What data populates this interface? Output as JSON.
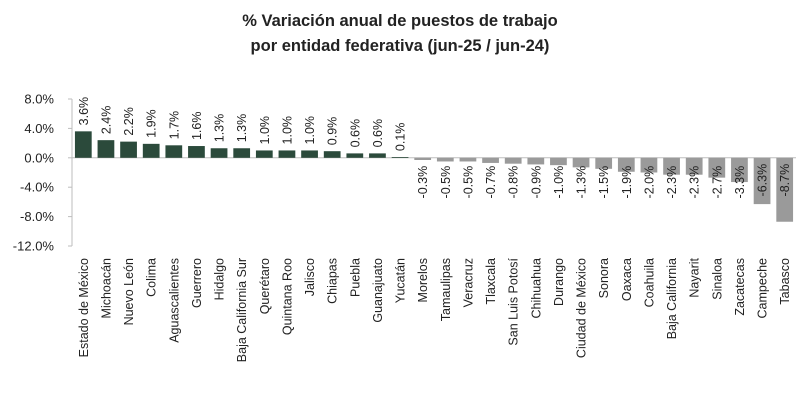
{
  "chart_data": {
    "type": "bar",
    "title": [
      "% Variación anual de puestos de trabajo",
      "por entidad federativa (jun-25 / jun-24)"
    ],
    "categories": [
      "Estado de México",
      "Michoacán",
      "Nuevo León",
      "Colima",
      "Aguascalientes",
      "Guerrero",
      "Hidalgo",
      "Baja California Sur",
      "Querétaro",
      "Quintana Roo",
      "Jalisco",
      "Chiapas",
      "Puebla",
      "Guanajuato",
      "Yucatán",
      "Morelos",
      "Tamaulipas",
      "Veracruz",
      "Tlaxcala",
      "San Luis Potosí",
      "Chihuahua",
      "Durango",
      "Ciudad de México",
      "Sonora",
      "Oaxaca",
      "Coahuila",
      "Baja California",
      "Nayarit",
      "Sinaloa",
      "Zacatecas",
      "Campeche",
      "Tabasco"
    ],
    "values": [
      3.6,
      2.4,
      2.2,
      1.9,
      1.7,
      1.6,
      1.3,
      1.3,
      1.0,
      1.0,
      1.0,
      0.9,
      0.6,
      0.6,
      0.1,
      -0.3,
      -0.5,
      -0.5,
      -0.7,
      -0.8,
      -0.9,
      -1.0,
      -1.3,
      -1.5,
      -1.9,
      -2.0,
      -2.3,
      -2.3,
      -2.7,
      -3.3,
      -6.3,
      -8.7
    ],
    "data_labels": [
      "3.6%",
      "2.4%",
      "2.2%",
      "1.9%",
      "1.7%",
      "1.6%",
      "1.3%",
      "1.3%",
      "1.0%",
      "1.0%",
      "1.0%",
      "0.9%",
      "0.6%",
      "0.6%",
      "0.1%",
      "-0.3%",
      "-0.5%",
      "-0.5%",
      "-0.7%",
      "-0.8%",
      "-0.9%",
      "-1.0%",
      "-1.3%",
      "-1.5%",
      "-1.9%",
      "-2.0%",
      "-2.3%",
      "-2.3%",
      "-2.7%",
      "-3.3%",
      "-6.3%",
      "-8.7%"
    ],
    "y_ticks": [
      8.0,
      4.0,
      0.0,
      -4.0,
      -8.0,
      -12.0
    ],
    "y_tick_labels": [
      "8.0%",
      "4.0%",
      "0.0%",
      "-4.0%",
      "-8.0%",
      "-12.0%"
    ],
    "ylim": [
      -12,
      8
    ],
    "xlabel": "",
    "ylabel": "",
    "grid": false,
    "legend": "none",
    "colors": {
      "positive": "#2b4a3b",
      "negative": "#9a9a9a",
      "axis": "#bdbdbd",
      "text": "#222222"
    }
  }
}
